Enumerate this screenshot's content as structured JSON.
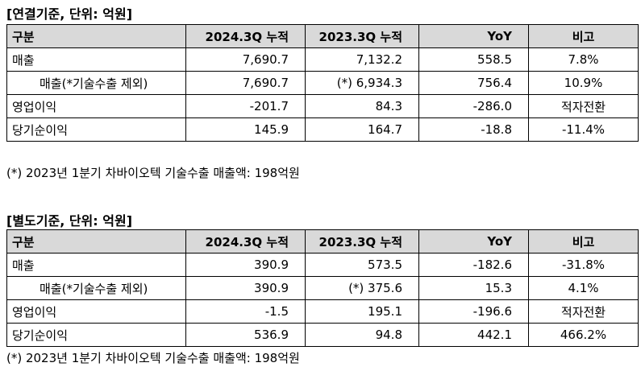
{
  "consolidated": {
    "title": "[연결기준, 단위: 억원]",
    "headers": [
      "구분",
      "2024.3Q 누적",
      "2023.3Q 누적",
      "YoY",
      "비고"
    ],
    "rows": [
      {
        "label": "매출",
        "cur": "7,690.7",
        "prev": "7,132.2",
        "yoy": "558.5",
        "note": "7.8%"
      },
      {
        "label": "매출(*기술수출 제외)",
        "cur": "7,690.7",
        "prev": "(*) 6,934.3",
        "yoy": "756.4",
        "note": "10.9%"
      },
      {
        "label": "영업이익",
        "cur": "-201.7",
        "prev": "84.3",
        "yoy": "-286.0",
        "note": "적자전환"
      },
      {
        "label": "당기순이익",
        "cur": "145.9",
        "prev": "164.7",
        "yoy": "-18.8",
        "note": "-11.4%"
      }
    ],
    "footnote": "(*) 2023년 1분기 차바이오텍 기술수출 매출액: 198억원"
  },
  "separate": {
    "title": "[별도기준, 단위: 억원]",
    "headers": [
      "구분",
      "2024.3Q 누적",
      "2023.3Q 누적",
      "YoY",
      "비고"
    ],
    "rows": [
      {
        "label": "매출",
        "cur": "390.9",
        "prev": "573.5",
        "yoy": "-182.6",
        "note": "-31.8%"
      },
      {
        "label": "매출(*기술수출 제외)",
        "cur": "390.9",
        "prev": "(*) 375.6",
        "yoy": "15.3",
        "note": "4.1%"
      },
      {
        "label": "영업이익",
        "cur": "-1.5",
        "prev": "195.1",
        "yoy": "-196.6",
        "note": "적자전환"
      },
      {
        "label": "당기순이익",
        "cur": "536.9",
        "prev": "94.8",
        "yoy": "442.1",
        "note": "466.2%"
      }
    ],
    "footnote": "(*) 2023년 1분기 차바이오텍 기술수출 매출액: 198억원"
  }
}
